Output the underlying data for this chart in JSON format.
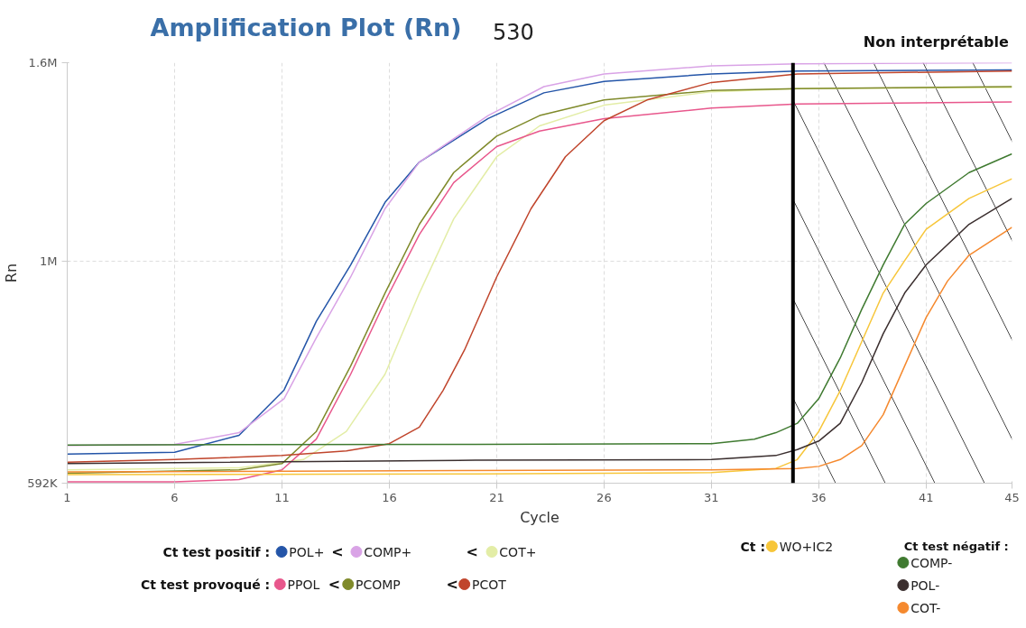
{
  "chart_data": {
    "type": "line",
    "title": "Amplification Plot (Rn)",
    "subtitle": "530",
    "xlabel": "Cycle",
    "ylabel": "Rn",
    "xlim": [
      1,
      45
    ],
    "xticks": [
      1,
      6,
      11,
      16,
      21,
      26,
      31,
      36,
      41,
      45
    ],
    "ylim": [
      592000,
      1600000
    ],
    "yticks": [
      {
        "value": 592000,
        "label": "592K"
      },
      {
        "value": 1000000,
        "label": "1M"
      },
      {
        "value": 1600000,
        "label": "1.6M"
      }
    ],
    "log": "y",
    "grid": true,
    "legend": "bottom",
    "marker": "none",
    "line_style": "solid",
    "annotations": [
      "Ct test positif :",
      "Ct test provoqué :",
      "Ct :",
      "Ct test négatif :",
      "<",
      "<",
      "<",
      "<"
    ],
    "ref_lines": [
      {
        "axis": "x",
        "value": 34.8,
        "label": null,
        "color": "#000000"
      }
    ],
    "bands": [
      {
        "axis": "x",
        "from": 34.8,
        "to": 45,
        "label": "Non interprétable",
        "color": "#000000"
      }
    ],
    "series": [
      {
        "name": "POL+",
        "color": "#2455a8",
        "x": [
          1,
          6,
          9,
          11.1,
          12.6,
          14.2,
          15.8,
          17.4,
          20.6,
          23.2,
          26,
          31,
          35,
          45
        ],
        "values": [
          634000,
          637000,
          663000,
          738000,
          868000,
          992000,
          1150000,
          1265000,
          1402000,
          1490000,
          1531000,
          1558000,
          1569000,
          1573000
        ]
      },
      {
        "name": "COMP+",
        "color": "#d9a3e6",
        "x": [
          1,
          6,
          9,
          11.1,
          12.6,
          14.2,
          15.8,
          17.4,
          20.6,
          23.2,
          26,
          31,
          35,
          45
        ],
        "values": [
          647000,
          649000,
          667000,
          723000,
          835000,
          964000,
          1133000,
          1265000,
          1412000,
          1512000,
          1558000,
          1588000,
          1596000,
          1600000
        ]
      },
      {
        "name": "COT+",
        "color": "#e3eda6",
        "x": [
          1,
          9,
          12,
          14,
          15.8,
          17.4,
          19,
          21,
          23,
          26,
          31,
          35,
          45
        ],
        "values": [
          611000,
          614000,
          626000,
          669000,
          766000,
          928000,
          1106000,
          1281000,
          1378000,
          1447000,
          1494000,
          1505000,
          1509000
        ]
      },
      {
        "name": "PPOL",
        "color": "#e8578c",
        "x": [
          1,
          6,
          9,
          11,
          12.6,
          14.2,
          15.8,
          17.4,
          19,
          21,
          23,
          26,
          31,
          35,
          45
        ],
        "values": [
          594000,
          594000,
          597000,
          611000,
          657000,
          766000,
          910000,
          1066000,
          1205000,
          1312000,
          1361000,
          1402000,
          1437000,
          1451000,
          1458000
        ]
      },
      {
        "name": "PCOMP",
        "color": "#7f8a2a",
        "x": [
          1,
          9,
          11,
          12.6,
          14.2,
          15.8,
          17.4,
          19,
          21,
          23,
          26,
          31,
          35,
          45
        ],
        "values": [
          606000,
          611000,
          620000,
          669000,
          781000,
          928000,
          1092000,
          1234000,
          1345000,
          1412000,
          1465000,
          1498000,
          1505000,
          1512000
        ]
      },
      {
        "name": "PCOT",
        "color": "#c0452c",
        "x": [
          1,
          6,
          11,
          14,
          16,
          17.4,
          18.5,
          19.5,
          21,
          22.6,
          24.2,
          26,
          28,
          31,
          35,
          45
        ],
        "values": [
          622000,
          626000,
          632000,
          639000,
          650000,
          676000,
          737000,
          811000,
          964000,
          1133000,
          1281000,
          1395000,
          1465000,
          1527000,
          1558000,
          1569000
        ]
      },
      {
        "name": "WO+IC2",
        "color": "#f7c63a",
        "x": [
          1,
          20,
          31,
          34,
          35,
          36,
          37,
          38,
          39,
          40,
          41,
          43,
          45
        ],
        "values": [
          604000,
          605000,
          607000,
          613000,
          626000,
          669000,
          737000,
          827000,
          928000,
          1002000,
          1079000,
          1161000,
          1216000
        ]
      },
      {
        "name": "COMP-",
        "color": "#3f7a30",
        "x": [
          1,
          20,
          31,
          33,
          34,
          35,
          36,
          37,
          38,
          39,
          40,
          41,
          43,
          45
        ],
        "values": [
          648000,
          649000,
          650000,
          657000,
          667000,
          682000,
          723000,
          796000,
          893000,
          992000,
          1092000,
          1147000,
          1234000,
          1290000
        ]
      },
      {
        "name": "POL-",
        "color": "#3b2f2f",
        "x": [
          1,
          20,
          31,
          34,
          35,
          36,
          37,
          38,
          39,
          40,
          41,
          43,
          45
        ],
        "values": [
          620000,
          625000,
          626000,
          632000,
          641000,
          654000,
          682000,
          751000,
          843000,
          928000,
          992000,
          1092000,
          1161000
        ]
      },
      {
        "name": "COT-",
        "color": "#f5892e",
        "x": [
          1,
          31,
          35,
          36,
          37,
          38,
          39,
          40,
          41,
          42,
          43,
          45
        ],
        "values": [
          608000,
          611000,
          613000,
          616000,
          626000,
          647000,
          696000,
          781000,
          876000,
          955000,
          1015000,
          1084000
        ]
      }
    ]
  }
}
